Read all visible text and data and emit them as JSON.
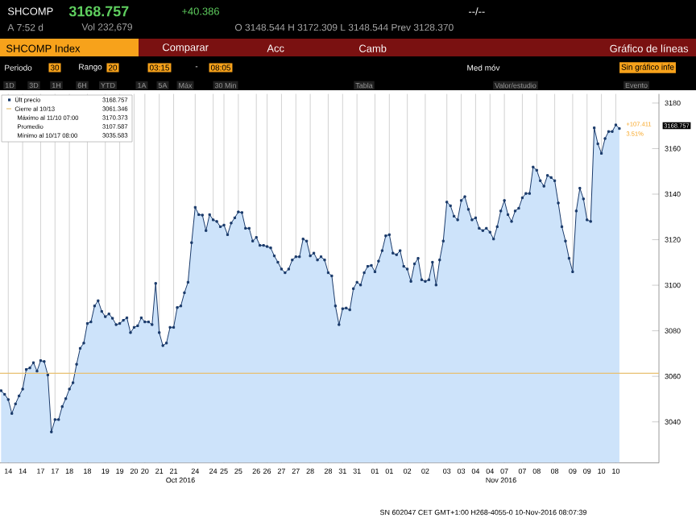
{
  "chart_data": {
    "type": "area",
    "ylim": [
      3022,
      3184
    ],
    "categories": [
      null,
      null,
      "14",
      null,
      null,
      null,
      "14",
      null,
      null,
      null,
      null,
      "17",
      null,
      null,
      null,
      "17",
      null,
      null,
      null,
      "18",
      null,
      null,
      null,
      null,
      "18",
      null,
      null,
      null,
      null,
      "19",
      null,
      null,
      null,
      "19",
      null,
      null,
      null,
      "20",
      null,
      null,
      "20",
      null,
      null,
      null,
      "21",
      null,
      null,
      null,
      "21",
      null,
      null,
      null,
      null,
      null,
      "24",
      null,
      null,
      null,
      null,
      "24",
      null,
      null,
      "25",
      null,
      null,
      null,
      "25",
      null,
      null,
      null,
      null,
      "26",
      null,
      null,
      "26",
      null,
      null,
      null,
      "27",
      null,
      null,
      null,
      "27",
      null,
      null,
      null,
      "28",
      null,
      null,
      null,
      null,
      "28",
      null,
      null,
      null,
      "31",
      null,
      null,
      null,
      "31",
      null,
      null,
      null,
      null,
      "01",
      null,
      null,
      null,
      "01",
      null,
      null,
      null,
      null,
      "02",
      null,
      null,
      null,
      null,
      "02",
      null,
      null,
      null,
      null,
      null,
      "03",
      null,
      null,
      null,
      "03",
      null,
      null,
      null,
      "04",
      null,
      null,
      null,
      "04",
      null,
      null,
      null,
      "07",
      null,
      null,
      null,
      null,
      "07",
      null,
      null,
      null,
      "08",
      null,
      null,
      null,
      null,
      "08",
      null,
      null,
      null,
      null,
      "09",
      null,
      null,
      null,
      "09",
      null,
      null,
      null,
      "10",
      null,
      null,
      null,
      "10",
      null
    ],
    "yticks": [
      3040,
      3060,
      3080,
      3100,
      3120,
      3140,
      3160,
      3180
    ],
    "grid": "x",
    "legend": "top left",
    "marker": "square",
    "series": [
      {
        "name": "Últ precio",
        "color": "#1a3a6a",
        "values": [
          3053.7,
          3052.1,
          3049.8,
          3043.7,
          3047.9,
          3051.4,
          3054.4,
          3063.0,
          3063.7,
          3066.0,
          3062.3,
          3066.9,
          3066.5,
          3060.6,
          3035.6,
          3041.0,
          3041.0,
          3046.7,
          3050.2,
          3054.4,
          3057.2,
          3065.3,
          3072.3,
          3074.6,
          3083.2,
          3083.9,
          3090.9,
          3093.2,
          3088.5,
          3086.2,
          3087.4,
          3085.5,
          3082.7,
          3083.2,
          3084.6,
          3085.7,
          3079.2,
          3081.5,
          3082.2,
          3085.7,
          3083.9,
          3083.9,
          3082.7,
          3100.8,
          3079.2,
          3073.5,
          3074.6,
          3081.5,
          3081.5,
          3090.2,
          3090.9,
          3096.7,
          3101.3,
          3118.7,
          3134.2,
          3131.0,
          3130.8,
          3124.0,
          3131.0,
          3128.7,
          3128.0,
          3125.7,
          3126.4,
          3122.2,
          3127.3,
          3129.6,
          3132.2,
          3131.9,
          3125.0,
          3125.0,
          3119.4,
          3121.0,
          3117.5,
          3117.5,
          3117.0,
          3116.4,
          3112.9,
          3110.1,
          3107.1,
          3105.5,
          3107.1,
          3111.1,
          3112.5,
          3112.5,
          3120.3,
          3119.4,
          3112.9,
          3114.1,
          3111.1,
          3112.5,
          3111.1,
          3105.5,
          3104.1,
          3090.9,
          3082.7,
          3089.7,
          3090.0,
          3089.2,
          3098.5,
          3101.3,
          3100.1,
          3105.5,
          3108.3,
          3108.7,
          3105.9,
          3110.6,
          3115.2,
          3121.7,
          3122.2,
          3114.1,
          3113.4,
          3115.2,
          3108.3,
          3107.1,
          3101.7,
          3109.4,
          3111.8,
          3102.4,
          3101.7,
          3102.4,
          3110.1,
          3100.1,
          3111.1,
          3119.4,
          3136.5,
          3134.9,
          3130.3,
          3128.7,
          3137.2,
          3138.9,
          3133.3,
          3128.7,
          3129.6,
          3125.0,
          3124.0,
          3125.0,
          3123.3,
          3120.3,
          3125.7,
          3132.6,
          3137.2,
          3131.0,
          3128.0,
          3132.6,
          3133.8,
          3138.4,
          3140.3,
          3140.3,
          3151.9,
          3150.5,
          3145.9,
          3143.5,
          3148.2,
          3147.3,
          3145.9,
          3136.1,
          3125.7,
          3119.4,
          3111.8,
          3105.9,
          3132.6,
          3142.6,
          3137.9,
          3128.7,
          3128.0,
          3169.1,
          3162.1,
          3157.9,
          3164.4,
          3167.5,
          3167.5,
          3170.4,
          3168.8
        ]
      }
    ],
    "ref_lines": [
      {
        "axis": "y",
        "value": 3061.346,
        "label": "Cierre al 10/13",
        "color": "#e8c070"
      }
    ],
    "annotations": [
      "SHCOMP",
      "3168.757",
      "+40.386",
      "--/--",
      "A 7:52 d",
      "Vol 232,679",
      "O 3148.544 H 3172.309 L 3148.544 Prev 3128.370",
      "SHCOMP Index",
      "Comparar",
      "Acc",
      "Camb",
      "Gráfico de líneas",
      "Periodo",
      "30",
      "Rango",
      "20",
      "03:15",
      "-",
      "08:05",
      "Med móv",
      "Sin gráfico infe",
      "1D",
      "3D",
      "1H",
      "6H",
      "YTD",
      "1A",
      "5A",
      "Máx",
      "30 Min",
      "Tabla",
      "Valor/estudio",
      "Evento",
      "3168.757",
      "Máximo al 11/10 07:00",
      "3170.373",
      "Promedio",
      "3107.587",
      "Mínimo al 10/17 08:00",
      "3035.583",
      "+107.411",
      "3.51%",
      "3168.757",
      "Oct 2016",
      "Nov 2016",
      "SN 602047 CET GMT+1:00 H268-4055-0 10-Nov-2016 08:07:39",
      "3061.346"
    ]
  }
}
